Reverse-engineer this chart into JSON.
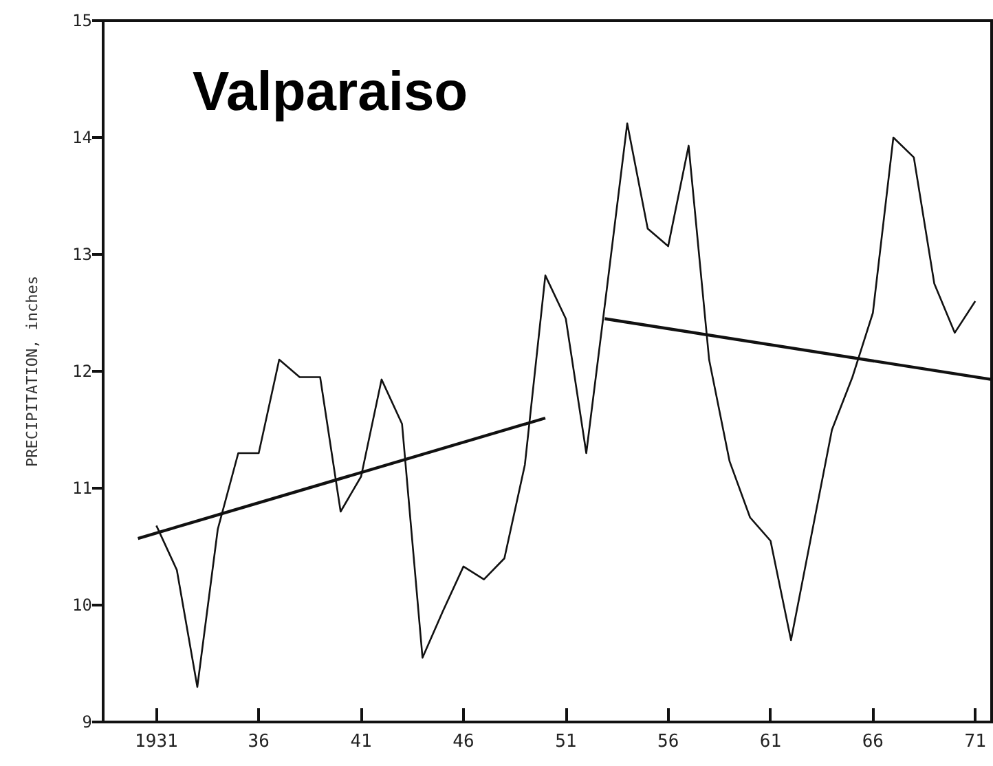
{
  "chart_data": {
    "type": "line",
    "title": "Valparaiso",
    "ylabel": "PRECIPITATION, inches",
    "xlim": [
      1928.4,
      1971.8
    ],
    "ylim": [
      9,
      15
    ],
    "xticks": [
      {
        "value": 1931,
        "label": "1931"
      },
      {
        "value": 1936,
        "label": "36"
      },
      {
        "value": 1941,
        "label": "41"
      },
      {
        "value": 1946,
        "label": "46"
      },
      {
        "value": 1951,
        "label": "51"
      },
      {
        "value": 1956,
        "label": "56"
      },
      {
        "value": 1961,
        "label": "61"
      },
      {
        "value": 1966,
        "label": "66"
      },
      {
        "value": 1971,
        "label": "71"
      }
    ],
    "yticks": [
      9,
      10,
      11,
      12,
      13,
      14,
      15
    ],
    "grid": false,
    "marker": "none",
    "series": [
      {
        "color": "#111111",
        "x": [
          1931,
          1932,
          1933,
          1934,
          1935,
          1936,
          1937,
          1938,
          1939,
          1940,
          1941,
          1942,
          1943,
          1944,
          1945,
          1946,
          1947,
          1948,
          1949,
          1950,
          1951,
          1952,
          1953,
          1954,
          1955,
          1956,
          1957,
          1958,
          1959,
          1960,
          1961,
          1962,
          1963,
          1964,
          1965,
          1966,
          1967,
          1968,
          1969,
          1970,
          1971
        ],
        "values": [
          10.68,
          10.3,
          9.3,
          10.65,
          11.3,
          11.3,
          12.1,
          11.95,
          11.95,
          10.8,
          11.1,
          11.93,
          11.55,
          9.55,
          9.95,
          10.33,
          10.22,
          10.4,
          11.2,
          12.82,
          12.45,
          11.3,
          12.7,
          14.12,
          13.22,
          13.07,
          13.93,
          12.1,
          11.23,
          10.75,
          10.55,
          9.7,
          10.6,
          11.5,
          11.95,
          12.5,
          14.0,
          13.83,
          12.75,
          12.33,
          12.6
        ]
      },
      {
        "color": "#111111",
        "x": [
          1930.1,
          1950
        ],
        "values": [
          10.57,
          11.6
        ]
      },
      {
        "color": "#111111",
        "x": [
          1952.9,
          1971.8
        ],
        "values": [
          12.45,
          11.93
        ]
      }
    ]
  }
}
